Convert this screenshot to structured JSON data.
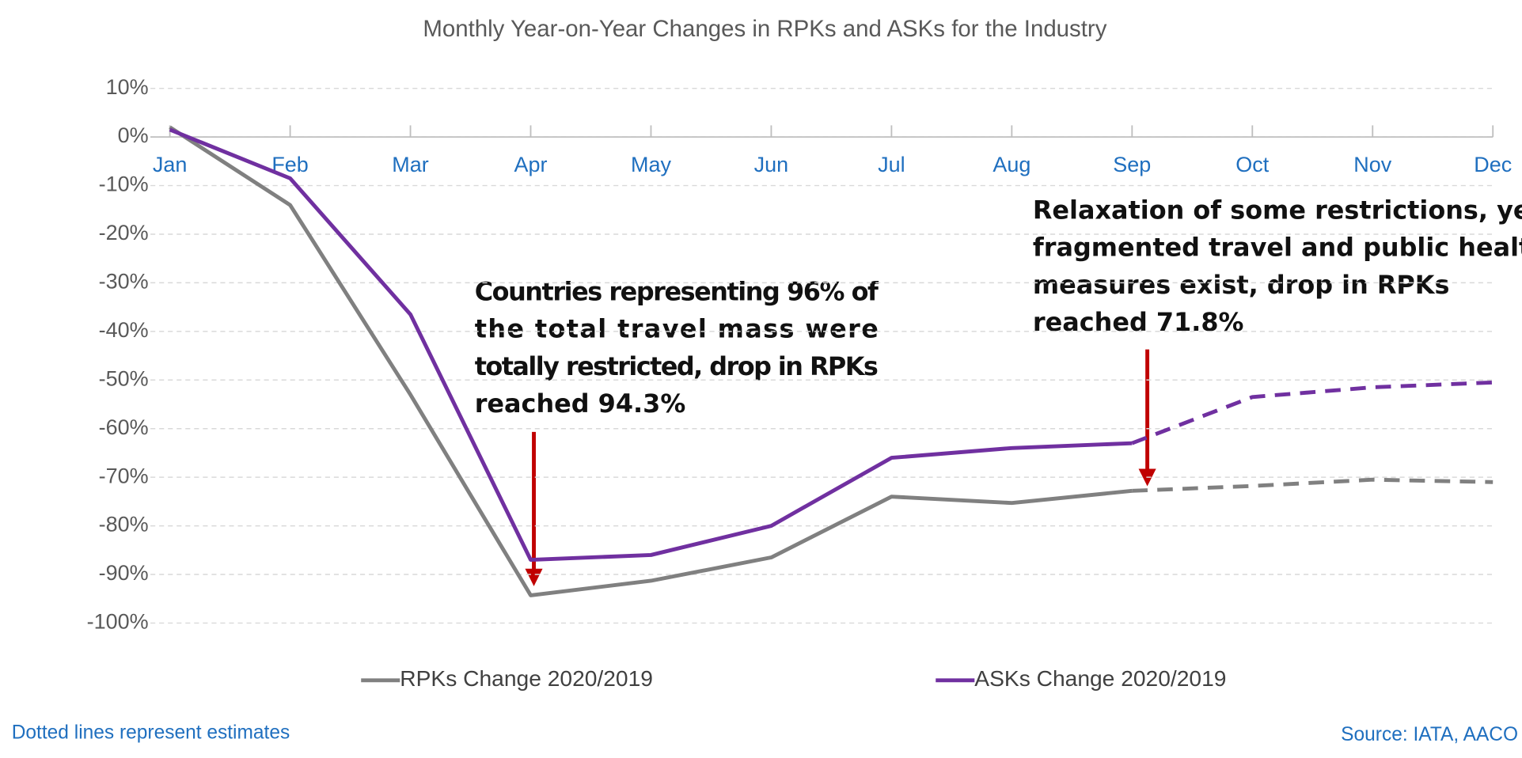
{
  "chart_data": {
    "type": "line",
    "title": "Monthly Year-on-Year Changes in RPKs and ASKs for the Industry",
    "categories": [
      "Jan",
      "Feb",
      "Mar",
      "Apr",
      "May",
      "Jun",
      "Jul",
      "Aug",
      "Sep",
      "Oct",
      "Nov",
      "Dec"
    ],
    "series": [
      {
        "name": "RPKs Change 2020/2019",
        "color": "#808080",
        "dashed_from_index": 8,
        "values": [
          2,
          -14,
          -53,
          -94.3,
          -91.3,
          -86.5,
          -74,
          -75.3,
          -72.8,
          -71.8,
          -70.5,
          -71
        ]
      },
      {
        "name": "ASKs Change 2020/2019",
        "color": "#7030a0",
        "dashed_from_index": 8,
        "values": [
          1.5,
          -8.5,
          -36.5,
          -87,
          -86,
          -80,
          -66,
          -64,
          -63,
          -53.5,
          -51.5,
          -50.5
        ]
      }
    ],
    "ylim": [
      -100,
      10
    ],
    "yticks": [
      {
        "value": 10,
        "label": "10%"
      },
      {
        "value": 0,
        "label": "0%"
      },
      {
        "value": -10,
        "label": "-10%"
      },
      {
        "value": -20,
        "label": "-20%"
      },
      {
        "value": -30,
        "label": "-30%"
      },
      {
        "value": -40,
        "label": "-40%"
      },
      {
        "value": -50,
        "label": "-50%"
      },
      {
        "value": -60,
        "label": "-60%"
      },
      {
        "value": -70,
        "label": "-70%"
      },
      {
        "value": -80,
        "label": "-80%"
      },
      {
        "value": -90,
        "label": "-90%"
      },
      {
        "value": -100,
        "label": "-100%"
      }
    ],
    "grid": true,
    "legend": "bottom",
    "annotations": [
      [
        "Countries representing 96% of",
        "the total travel mass were",
        "totally restricted, drop in RPKs",
        "reached 94.3%"
      ],
      [
        "Relaxation of some restrictions, yet",
        "fragmented travel and public health",
        "measures exist, drop in RPKs",
        "reached 71.8%"
      ]
    ],
    "footnote": "Dotted lines represent estimates",
    "source": "Source: IATA, AACO"
  }
}
